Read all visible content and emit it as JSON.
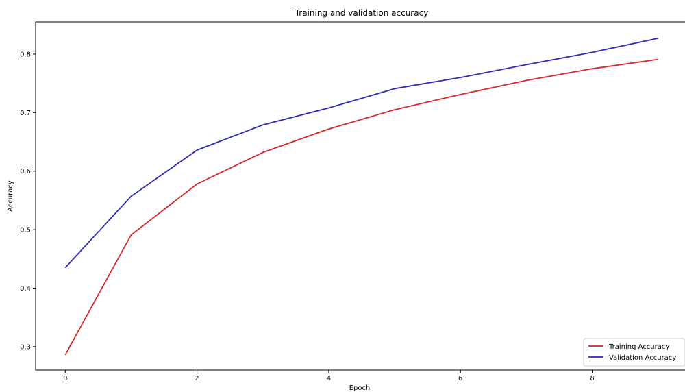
{
  "chart_data": {
    "type": "line",
    "title": "Training and validation accuracy",
    "xlabel": "Epoch",
    "ylabel": "Accuracy",
    "xlim": [
      -0.45,
      9.45
    ],
    "ylim": [
      0.26,
      0.855
    ],
    "xticks": [
      0,
      2,
      4,
      6,
      8
    ],
    "xtick_labels": [
      "0",
      "2",
      "4",
      "6",
      "8"
    ],
    "yticks": [
      0.3,
      0.4,
      0.5,
      0.6,
      0.7,
      0.8
    ],
    "ytick_labels": [
      "0.3",
      "0.4",
      "0.5",
      "0.6",
      "0.7",
      "0.8"
    ],
    "grid": false,
    "legend_position": "bottom-right",
    "x": [
      0,
      1,
      2,
      3,
      4,
      5,
      6,
      7,
      8,
      9
    ],
    "series": [
      {
        "name": "Training Accuracy",
        "color": "#d62728",
        "values": [
          0.286,
          0.491,
          0.578,
          0.632,
          0.672,
          0.705,
          0.731,
          0.755,
          0.775,
          0.791
        ]
      },
      {
        "name": "Validation Accuracy",
        "color": "#2a2ab5",
        "values": [
          0.435,
          0.557,
          0.636,
          0.679,
          0.708,
          0.741,
          0.76,
          0.782,
          0.803,
          0.827
        ]
      }
    ]
  }
}
